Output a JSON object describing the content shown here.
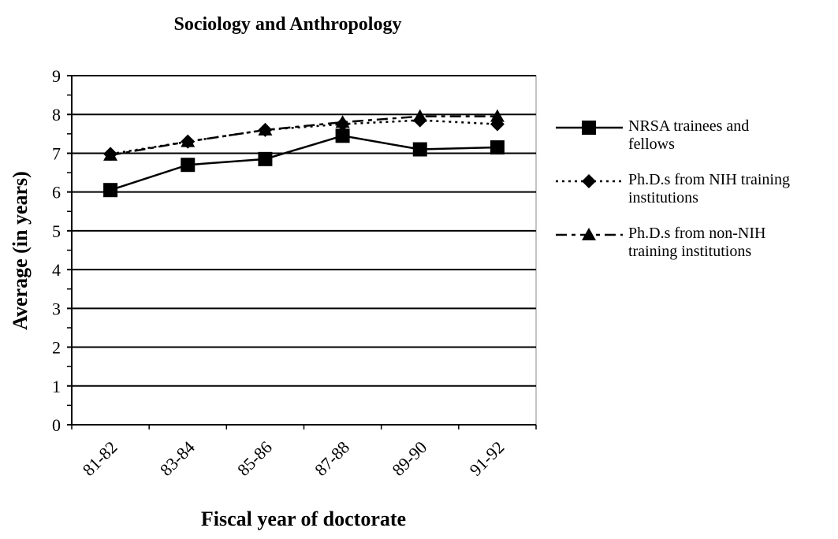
{
  "chart_data": {
    "type": "line",
    "title": "Sociology and Anthropology",
    "x_label": "Fiscal year of doctorate",
    "y_label": "Average (in years)",
    "categories": [
      "81-82",
      "83-84",
      "85-86",
      "87-88",
      "89-90",
      "91-92"
    ],
    "ylim": [
      0,
      9
    ],
    "yticks": [
      0,
      1,
      2,
      3,
      4,
      5,
      6,
      7,
      8,
      9
    ],
    "grid": true,
    "legend": "right",
    "series": [
      {
        "name": "NRSA trainees and fellows",
        "color": "#000000",
        "marker": "square",
        "dash": "solid",
        "values": [
          6.05,
          6.7,
          6.85,
          7.45,
          7.1,
          7.15
        ]
      },
      {
        "name": "Ph.D.s from NIH training institutions",
        "color": "#000000",
        "marker": "diamond",
        "dash": "dotted",
        "values": [
          6.98,
          7.3,
          7.6,
          7.75,
          7.85,
          7.75
        ]
      },
      {
        "name": "Ph.D.s from non-NIH training institutions",
        "color": "#000000",
        "marker": "triangle",
        "dash": "dashed",
        "values": [
          6.95,
          7.3,
          7.6,
          7.8,
          7.95,
          7.95
        ]
      }
    ]
  }
}
